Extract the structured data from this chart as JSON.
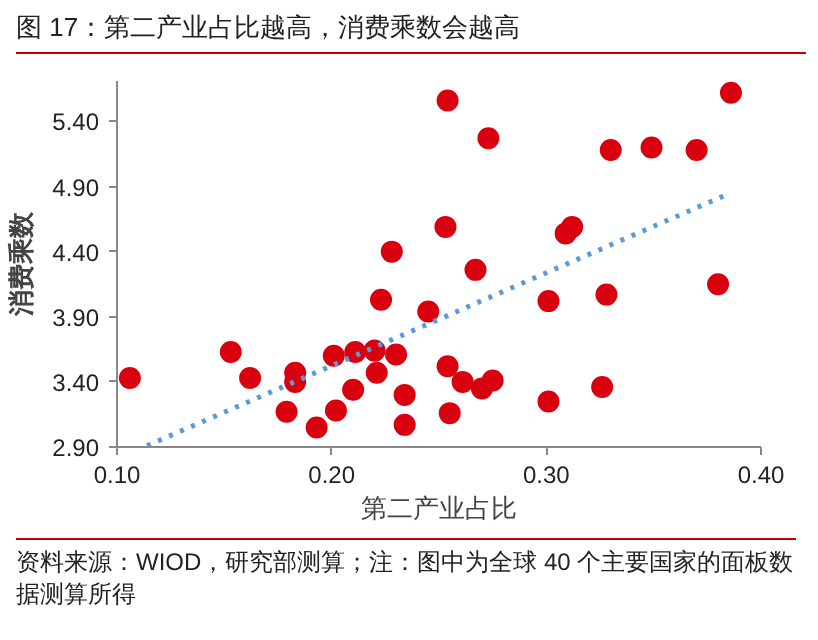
{
  "chart_data": {
    "type": "scatter",
    "title": "图 17：第二产业占比越高，消费乘数会越高",
    "xlabel": "第二产业占比",
    "ylabel": "消费乘数",
    "annotations": [
      "资料来源：WIOD，研究部测算；注：图中为全球 40 个主要国家的面板数据测算所得"
    ],
    "xlim": [
      0.1,
      0.4
    ],
    "ylim": [
      2.9,
      5.71
    ],
    "xticks": [
      {
        "value": 0.1,
        "label": "0.10"
      },
      {
        "value": 0.2,
        "label": "0.20"
      },
      {
        "value": 0.3,
        "label": "0.30"
      },
      {
        "value": 0.4,
        "label": "0.40"
      }
    ],
    "yticks": [
      {
        "value": 2.9,
        "label": "2.90"
      },
      {
        "value": 3.4,
        "label": "3.40"
      },
      {
        "value": 3.9,
        "label": "3.90"
      },
      {
        "value": 4.4,
        "label": "4.40"
      },
      {
        "value": 4.9,
        "label": "4.90"
      },
      {
        "value": 5.4,
        "label": "5.40"
      }
    ],
    "grid": false,
    "series": [
      {
        "marker": "circle",
        "color": "#d9000f",
        "x": [
          0.106,
          0.153,
          0.162,
          0.179,
          0.183,
          0.183,
          0.193,
          0.201,
          0.202,
          0.21,
          0.211,
          0.22,
          0.221,
          0.223,
          0.228,
          0.23,
          0.234,
          0.234,
          0.245,
          0.254,
          0.253,
          0.254,
          0.255,
          0.261,
          0.267,
          0.273,
          0.27,
          0.275,
          0.301,
          0.301,
          0.309,
          0.312,
          0.33,
          0.328,
          0.326,
          0.349,
          0.37,
          0.38,
          0.386
        ],
        "values": [
          3.43,
          3.63,
          3.43,
          3.17,
          3.47,
          3.4,
          3.05,
          3.6,
          3.18,
          3.34,
          3.63,
          3.64,
          3.47,
          4.03,
          4.4,
          3.61,
          3.3,
          3.07,
          3.94,
          5.56,
          4.59,
          3.52,
          3.16,
          3.4,
          4.26,
          5.27,
          3.35,
          3.41,
          4.02,
          3.25,
          4.54,
          4.59,
          5.18,
          4.07,
          3.36,
          5.2,
          5.18,
          4.15,
          5.62
        ]
      },
      {
        "type": "line",
        "line_style": "dotted",
        "color": "#5b9bd5",
        "x": [
          0.114,
          0.383
        ],
        "values": [
          2.91,
          4.83
        ]
      }
    ]
  }
}
